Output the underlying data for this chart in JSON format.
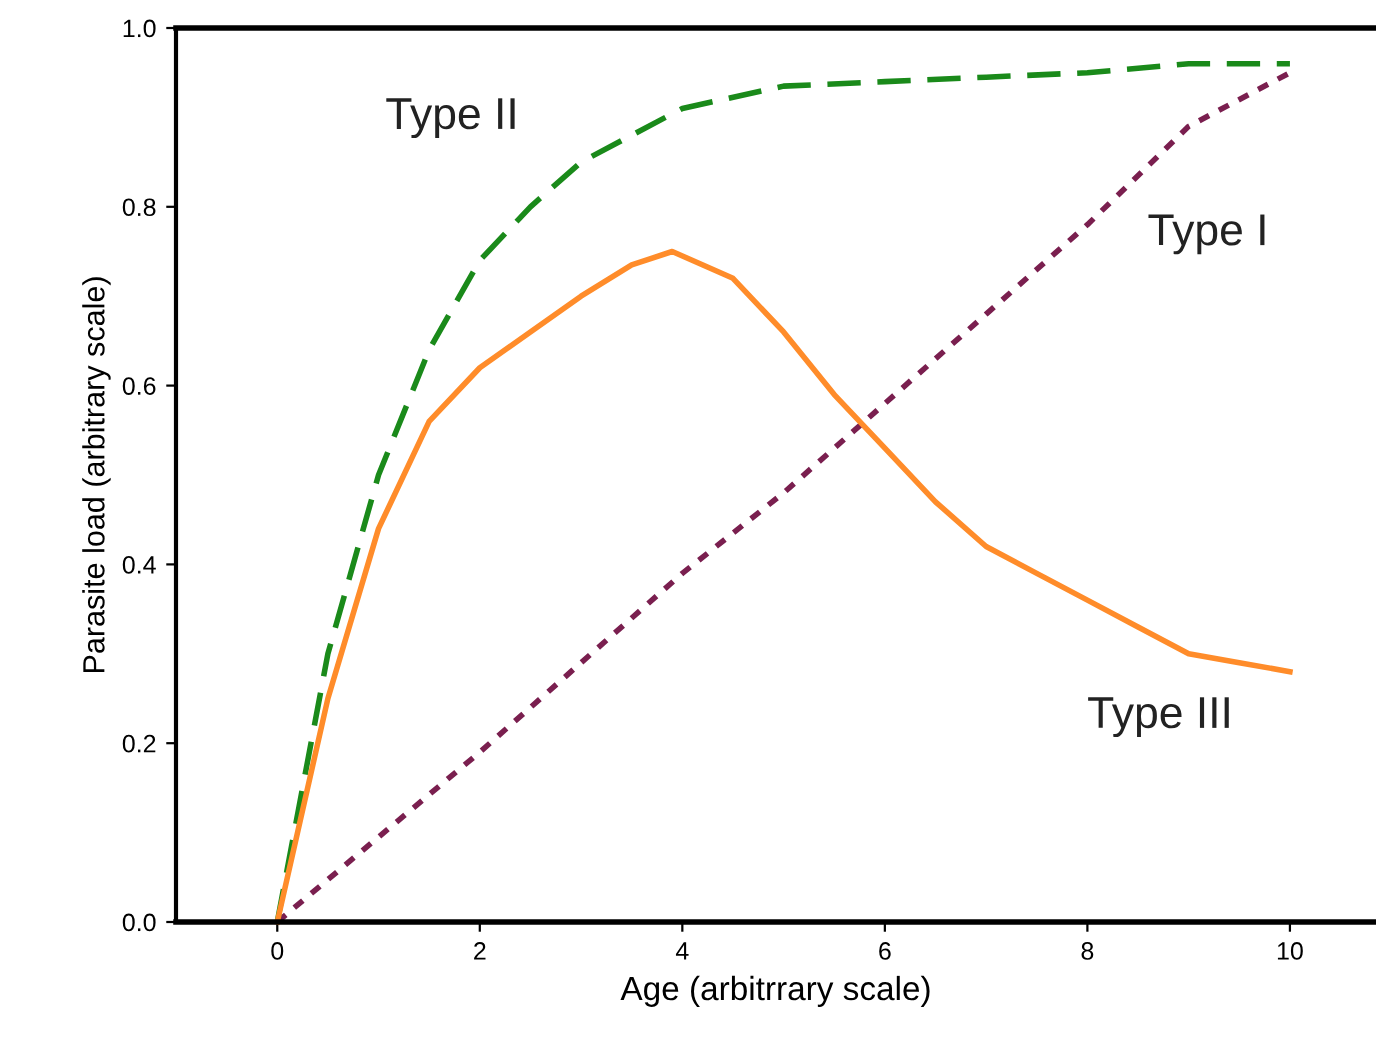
{
  "chart_data": {
    "type": "line",
    "xlabel": "Age (arbitrrary scale)",
    "ylabel": "Parasite load (arbitrary scale)",
    "xlim": [
      -1,
      10.85
    ],
    "ylim": [
      0,
      1.0
    ],
    "xticks": [
      0,
      2,
      4,
      6,
      8,
      10
    ],
    "yticks": [
      {
        "value": 0,
        "label": "0.0"
      },
      0.2,
      0.4,
      0.6,
      0.8,
      {
        "value": 1,
        "label": "1.0"
      }
    ],
    "grid": false,
    "legend": false,
    "series": [
      {
        "name": "Type I",
        "color": "#7a1f4f",
        "line_style": "dotted",
        "x": [
          0,
          2,
          4,
          5,
          6,
          7,
          8,
          9,
          10
        ],
        "values": [
          0,
          0.19,
          0.39,
          0.48,
          0.58,
          0.68,
          0.78,
          0.89,
          0.95
        ]
      },
      {
        "name": "Type II",
        "color": "#1a8a1a",
        "line_style": "dashed",
        "x": [
          0,
          0.5,
          1,
          1.5,
          2,
          2.5,
          3,
          4,
          5,
          6,
          7,
          8,
          9,
          10
        ],
        "values": [
          0,
          0.3,
          0.5,
          0.64,
          0.74,
          0.8,
          0.85,
          0.91,
          0.935,
          0.94,
          0.945,
          0.95,
          0.96,
          0.96
        ]
      },
      {
        "name": "Type III",
        "color": "#ff8c2a",
        "line_style": "solid",
        "x": [
          0,
          0.5,
          1,
          1.5,
          2,
          2.5,
          3,
          3.5,
          3.9,
          4.5,
          5,
          5.5,
          6,
          6.5,
          7,
          7.5,
          8,
          8.5,
          9,
          9.5,
          10
        ],
        "values": [
          0,
          0.25,
          0.44,
          0.56,
          0.62,
          0.66,
          0.7,
          0.735,
          0.75,
          0.72,
          0.66,
          0.59,
          0.53,
          0.47,
          0.42,
          0.39,
          0.36,
          0.33,
          0.3,
          0.29,
          0.28
        ]
      }
    ]
  }
}
